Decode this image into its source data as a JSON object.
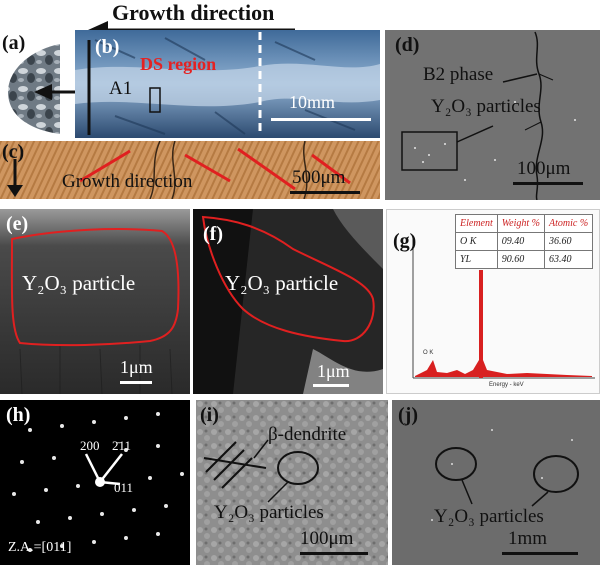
{
  "header": {
    "growth_direction": "Growth direction"
  },
  "panel_a": {
    "label": "(a)"
  },
  "panel_b": {
    "label": "(b)",
    "ds_region": "DS  region",
    "a1": "A1",
    "scale": "10mm"
  },
  "panel_c": {
    "label": "(c)",
    "growth_direction": "Growth direction",
    "scale": "500μm"
  },
  "panel_d": {
    "label": "(d)",
    "b2_phase": "B2 phase",
    "particles": "Y₂O₃ particles",
    "scale": "100μm"
  },
  "panel_e": {
    "label": "(e)",
    "particle": "Y₂O₃ particle",
    "scale": "1μm"
  },
  "panel_f": {
    "label": "(f)",
    "particle": "Y₂O₃ particle",
    "scale": "1μm"
  },
  "panel_g": {
    "label": "(g)",
    "table_header": [
      "Element",
      "Weight %",
      "Atomic %"
    ],
    "rows": [
      {
        "element": "O K",
        "weight": "09.40",
        "atomic": "36.60"
      },
      {
        "element": "YL",
        "weight": "90.60",
        "atomic": "63.40"
      }
    ],
    "peak_ok": "O K",
    "peak_yl": "Y L",
    "xlabel": "Energy - keV"
  },
  "panel_h": {
    "label": "(h)",
    "spot_200": "200",
    "spot_211": "2̄11",
    "spot_011": "011",
    "zone_axis": "Z.A.=[011]"
  },
  "panel_i": {
    "label": "(i)",
    "dendrite": "β-dendrite",
    "particles": "Y₂O₃ particles",
    "scale": "100μm"
  },
  "panel_j": {
    "label": "(j)",
    "particles": "Y₂O₃ particles",
    "scale": "1mm"
  }
}
